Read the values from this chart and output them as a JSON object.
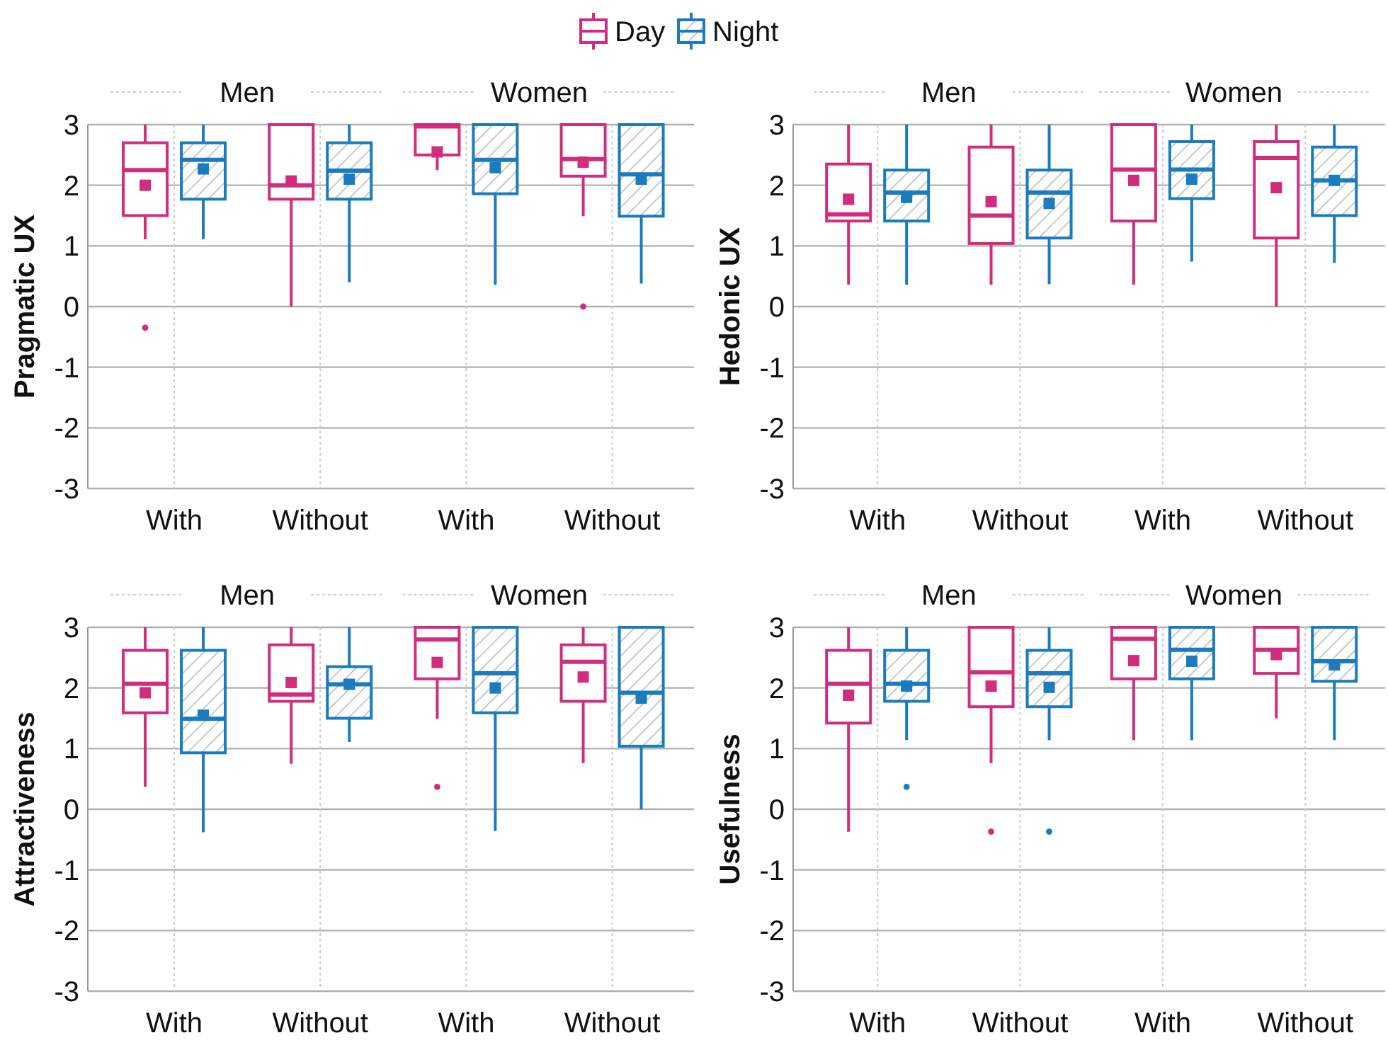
{
  "chart_data": [
    {
      "type": "box",
      "ylabel": "Pragmatic UX",
      "categories": [
        "With",
        "Without",
        "With",
        "Without"
      ],
      "annotations": [
        "Men",
        "Women"
      ],
      "ylim": [
        -3,
        3
      ],
      "yticks": [
        -3,
        -2,
        -1,
        0,
        1,
        2,
        3
      ],
      "grid": true,
      "marker": "square",
      "legend": "top",
      "series": [
        {
          "name": "Day",
          "color": "#d22c7c",
          "boxes": [
            {
              "low": 1.11,
              "q1": 1.5,
              "median": 2.25,
              "q3": 2.7,
              "high": 3,
              "mean": 2.0,
              "outliers": [
                -0.35
              ]
            },
            {
              "low": 0,
              "q1": 1.77,
              "median": 2.0,
              "q3": 3,
              "high": 3,
              "mean": 2.07
            },
            {
              "low": 2.25,
              "q1": 2.5,
              "median": 2.97,
              "q3": 3,
              "high": 3,
              "mean": 2.55
            },
            {
              "low": 1.49,
              "q1": 2.15,
              "median": 2.43,
              "q3": 3,
              "high": 3,
              "mean": 2.38,
              "outliers": [
                0
              ]
            }
          ]
        },
        {
          "name": "Night",
          "color": "#1a7bbf",
          "boxes": [
            {
              "low": 1.11,
              "q1": 1.77,
              "median": 2.42,
              "q3": 2.7,
              "high": 3,
              "mean": 2.27
            },
            {
              "low": 0.4,
              "q1": 1.77,
              "median": 2.24,
              "q3": 2.7,
              "high": 3,
              "mean": 2.1
            },
            {
              "low": 0.36,
              "q1": 1.86,
              "median": 2.42,
              "q3": 3,
              "high": 3,
              "mean": 2.29
            },
            {
              "low": 0.38,
              "q1": 1.49,
              "median": 2.18,
              "q3": 3,
              "high": 3,
              "mean": 2.1
            }
          ]
        }
      ]
    },
    {
      "type": "box",
      "ylabel": "Hedonic UX",
      "categories": [
        "With",
        "Without",
        "With",
        "Without"
      ],
      "annotations": [
        "Men",
        "Women"
      ],
      "ylim": [
        -3,
        3
      ],
      "yticks": [
        -3,
        -2,
        -1,
        0,
        1,
        2,
        3
      ],
      "grid": true,
      "marker": "square",
      "series": [
        {
          "color": "#d22c7c",
          "boxes": [
            {
              "low": 0.36,
              "q1": 1.41,
              "median": 1.52,
              "q3": 2.35,
              "high": 3,
              "mean": 1.77
            },
            {
              "low": 0.36,
              "q1": 1.04,
              "median": 1.5,
              "q3": 2.63,
              "high": 3,
              "mean": 1.73
            },
            {
              "low": 0.36,
              "q1": 1.41,
              "median": 2.26,
              "q3": 3,
              "high": 3,
              "mean": 2.08
            },
            {
              "low": 0,
              "q1": 1.13,
              "median": 2.45,
              "q3": 2.72,
              "high": 3,
              "mean": 1.96
            }
          ]
        },
        {
          "color": "#1a7bbf",
          "boxes": [
            {
              "low": 0.36,
              "q1": 1.41,
              "median": 1.88,
              "q3": 2.25,
              "high": 3,
              "mean": 1.8
            },
            {
              "low": 0.37,
              "q1": 1.13,
              "median": 1.88,
              "q3": 2.25,
              "high": 3,
              "mean": 1.7
            },
            {
              "low": 0.74,
              "q1": 1.78,
              "median": 2.26,
              "q3": 2.72,
              "high": 3,
              "mean": 2.1
            },
            {
              "low": 0.72,
              "q1": 1.5,
              "median": 2.08,
              "q3": 2.63,
              "high": 3,
              "mean": 2.08
            }
          ]
        }
      ]
    },
    {
      "type": "box",
      "ylabel": "Attractiveness",
      "categories": [
        "With",
        "Without",
        "With",
        "Without"
      ],
      "annotations": [
        "Men",
        "Women"
      ],
      "ylim": [
        -3,
        3
      ],
      "yticks": [
        -3,
        -2,
        -1,
        0,
        1,
        2,
        3
      ],
      "grid": true,
      "marker": "square",
      "series": [
        {
          "color": "#d22c7c",
          "boxes": [
            {
              "low": 0.37,
              "q1": 1.59,
              "median": 2.07,
              "q3": 2.62,
              "high": 3,
              "mean": 1.92
            },
            {
              "low": 0.75,
              "q1": 1.78,
              "median": 1.89,
              "q3": 2.71,
              "high": 3,
              "mean": 2.09
            },
            {
              "low": 1.49,
              "q1": 2.15,
              "median": 2.8,
              "q3": 3,
              "high": 3,
              "mean": 2.42,
              "outliers": [
                0.37
              ]
            },
            {
              "low": 0.76,
              "q1": 1.78,
              "median": 2.43,
              "q3": 2.71,
              "high": 3,
              "mean": 2.18
            }
          ]
        },
        {
          "color": "#1a7bbf",
          "boxes": [
            {
              "low": -0.38,
              "q1": 0.93,
              "median": 1.49,
              "q3": 2.62,
              "high": 3,
              "mean": 1.55
            },
            {
              "low": 1.11,
              "q1": 1.5,
              "median": 2.06,
              "q3": 2.35,
              "high": 3,
              "mean": 2.06
            },
            {
              "low": -0.36,
              "q1": 1.59,
              "median": 2.24,
              "q3": 3,
              "high": 3,
              "mean": 2.0
            },
            {
              "low": 0,
              "q1": 1.04,
              "median": 1.92,
              "q3": 3,
              "high": 3,
              "mean": 1.83
            }
          ]
        }
      ]
    },
    {
      "type": "box",
      "ylabel": "Usefulness",
      "categories": [
        "With",
        "Without",
        "With",
        "Without"
      ],
      "annotations": [
        "Men",
        "Women"
      ],
      "ylim": [
        -3,
        3
      ],
      "yticks": [
        -3,
        -2,
        -1,
        0,
        1,
        2,
        3
      ],
      "grid": true,
      "marker": "square",
      "series": [
        {
          "color": "#d22c7c",
          "boxes": [
            {
              "low": -0.37,
              "q1": 1.42,
              "median": 2.07,
              "q3": 2.62,
              "high": 3,
              "mean": 1.88
            },
            {
              "low": 0.76,
              "q1": 1.69,
              "median": 2.26,
              "q3": 3,
              "high": 3,
              "mean": 2.03,
              "outliers": [
                -0.37
              ]
            },
            {
              "low": 1.14,
              "q1": 2.15,
              "median": 2.81,
              "q3": 3,
              "high": 3,
              "mean": 2.45
            },
            {
              "low": 1.5,
              "q1": 2.24,
              "median": 2.63,
              "q3": 3,
              "high": 3,
              "mean": 2.55
            }
          ]
        },
        {
          "color": "#1a7bbf",
          "boxes": [
            {
              "low": 1.14,
              "q1": 1.78,
              "median": 2.07,
              "q3": 2.62,
              "high": 3,
              "mean": 2.03,
              "outliers": [
                0.37
              ]
            },
            {
              "low": 1.14,
              "q1": 1.69,
              "median": 2.24,
              "q3": 2.62,
              "high": 3,
              "mean": 2.01,
              "outliers": [
                -0.37
              ]
            },
            {
              "low": 1.14,
              "q1": 2.15,
              "median": 2.63,
              "q3": 3,
              "high": 3,
              "mean": 2.44
            },
            {
              "low": 1.14,
              "q1": 2.11,
              "median": 2.44,
              "q3": 3,
              "high": 3,
              "mean": 2.38
            }
          ]
        }
      ]
    }
  ]
}
